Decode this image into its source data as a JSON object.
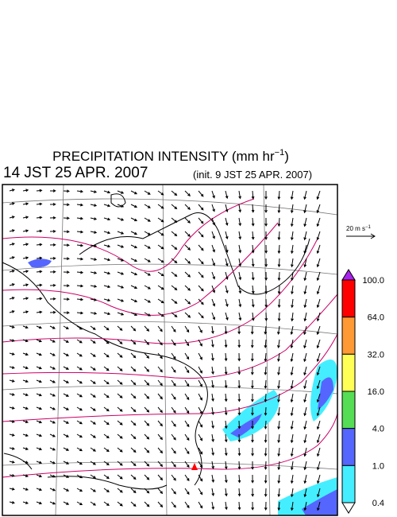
{
  "header": {
    "title": [
      "PRECIPITATION INTENSITY (mm hr",
      "−1",
      ")"
    ],
    "time": "14 JST 25 APR. 2007",
    "init": "(init. 9 JST 25 APR. 2007)"
  },
  "wind_scale": {
    "label": [
      "20 m s",
      "−1"
    ]
  },
  "colorbar": {
    "labels": [
      "100.0",
      "64.0",
      "32.0",
      "16.0",
      "4.0",
      "1.0",
      "0.4"
    ],
    "colors": [
      "#ff0000",
      "#ff9933",
      "#ffff55",
      "#55dd55",
      "#5566ff",
      "#44eeff"
    ],
    "over_color": "#aa22ee",
    "under_color": "#ffffff"
  }
}
